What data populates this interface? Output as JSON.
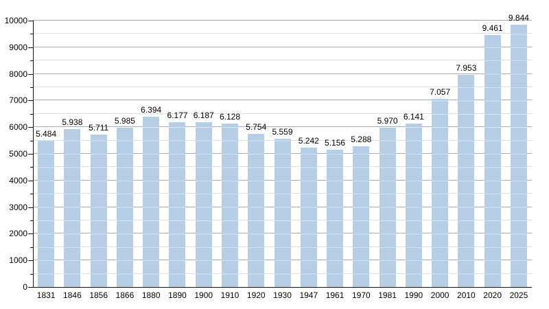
{
  "chart_data": {
    "type": "bar",
    "title": "",
    "xlabel": "",
    "ylabel": "",
    "categories": [
      "1831",
      "1846",
      "1856",
      "1866",
      "1880",
      "1890",
      "1900",
      "1910",
      "1920",
      "1930",
      "1947",
      "1961",
      "1970",
      "1981",
      "1990",
      "2000",
      "2010",
      "2020",
      "2025"
    ],
    "values": [
      5484,
      5938,
      5711,
      5985,
      6394,
      6177,
      6187,
      6128,
      5754,
      5559,
      5242,
      5156,
      5288,
      5970,
      6141,
      7057,
      7953,
      9461,
      9844
    ],
    "value_labels": [
      "5.484",
      "5.938",
      "5.711",
      "5.985",
      "6.394",
      "6.177",
      "6.187",
      "6.128",
      "5.754",
      "5.559",
      "5.242",
      "5.156",
      "5.288",
      "5.970",
      "6.141",
      "7.057",
      "7.953",
      "9.461",
      "9.844"
    ],
    "ylim": [
      0,
      10000
    ],
    "y_major_step": 1000,
    "y_minor_step": 500,
    "y_tick_labels": [
      "0",
      "1000",
      "2000",
      "3000",
      "4000",
      "5000",
      "6000",
      "7000",
      "8000",
      "9000",
      "10000"
    ],
    "grid": "on",
    "legend": "none",
    "colors": {
      "bar_fill": "#b5cde5",
      "major_gridline": "#ababab",
      "minor_gridline": "#dedede",
      "axis": "#111111",
      "text": "#000000",
      "background": "#ffffff"
    }
  }
}
